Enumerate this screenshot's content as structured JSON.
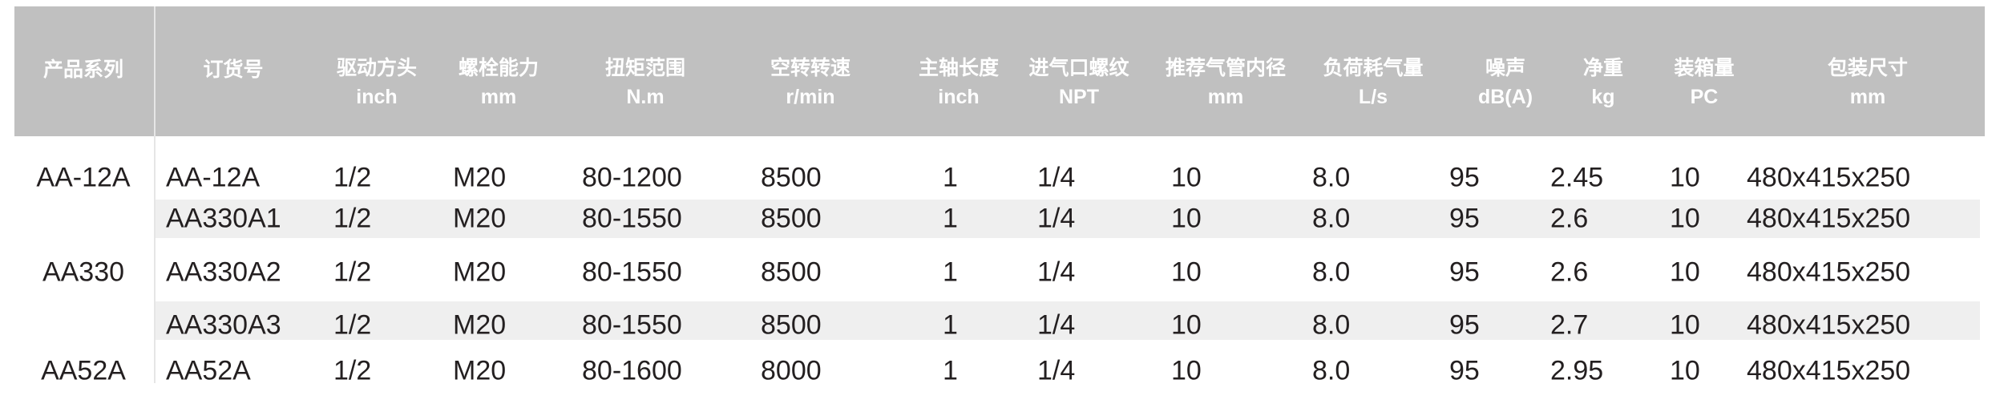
{
  "headers": [
    {
      "zh": "产品系列",
      "en": ""
    },
    {
      "zh": "订货号",
      "en": ""
    },
    {
      "zh": "驱动方头",
      "en": "inch"
    },
    {
      "zh": "螺栓能力",
      "en": "mm"
    },
    {
      "zh": "扭矩范围",
      "en": "N.m"
    },
    {
      "zh": "空转转速",
      "en": "r/min"
    },
    {
      "zh": "主轴长度",
      "en": "inch"
    },
    {
      "zh": "进气口螺纹",
      "en": "NPT"
    },
    {
      "zh": "推荐气管内径",
      "en": "mm"
    },
    {
      "zh": "负荷耗气量",
      "en": "L/s"
    },
    {
      "zh": "噪声",
      "en": "dB(A)"
    },
    {
      "zh": "净重",
      "en": "kg"
    },
    {
      "zh": "装箱量",
      "en": "PC"
    },
    {
      "zh": "包装尺寸",
      "en": "mm"
    }
  ],
  "series": [
    "AA-12A",
    "AA330",
    "AA52A"
  ],
  "rows": [
    [
      "AA-12A",
      "1/2",
      "M20",
      "80-1200",
      "8500",
      "1",
      "1/4",
      "10",
      "8.0",
      "95",
      "2.45",
      "10",
      "480x415x250"
    ],
    [
      "AA330A1",
      "1/2",
      "M20",
      "80-1550",
      "8500",
      "1",
      "1/4",
      "10",
      "8.0",
      "95",
      "2.6",
      "10",
      "480x415x250"
    ],
    [
      "AA330A2",
      "1/2",
      "M20",
      "80-1550",
      "8500",
      "1",
      "1/4",
      "10",
      "8.0",
      "95",
      "2.6",
      "10",
      "480x415x250"
    ],
    [
      "AA330A3",
      "1/2",
      "M20",
      "80-1550",
      "8500",
      "1",
      "1/4",
      "10",
      "8.0",
      "95",
      "2.7",
      "10",
      "480x415x250"
    ],
    [
      "AA52A",
      "1/2",
      "M20",
      "80-1600",
      "8000",
      "1",
      "1/4",
      "10",
      "8.0",
      "95",
      "2.95",
      "10",
      "480x415x250"
    ]
  ],
  "colors": {
    "header_bg": "#c0c0c0",
    "header_text": "#ffffff",
    "stripe": "#efefef",
    "text": "#231f20"
  }
}
